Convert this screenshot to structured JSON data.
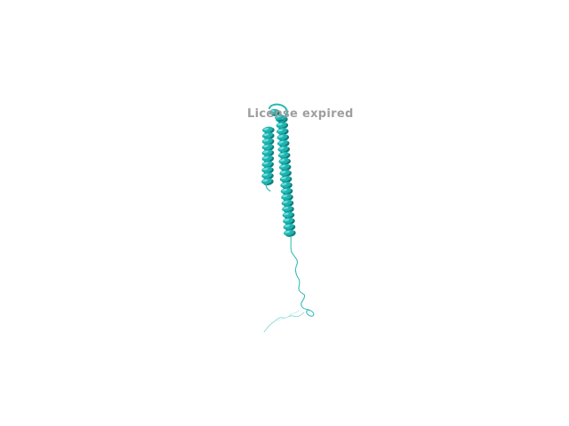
{
  "watermark": {
    "text": "License expired"
  },
  "colors": {
    "background": "#ffffff",
    "helix": "#1fb3b0",
    "helix_dark": "#0f7d7a",
    "helix_light": "#6fe0dc",
    "coil": "#2ab8b4",
    "watermark": "#9a9a9a"
  }
}
